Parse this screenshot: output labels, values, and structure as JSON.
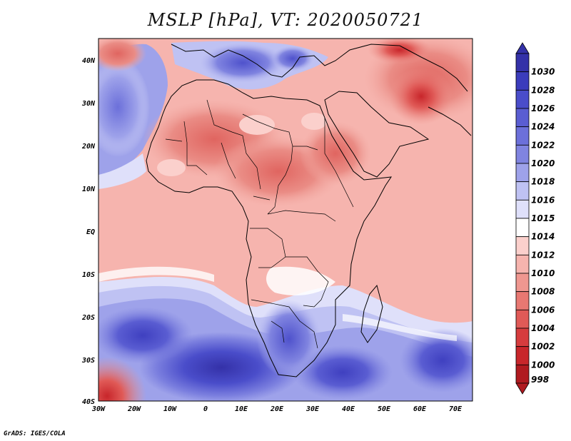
{
  "map": {
    "title": "MSLP [hPa], VT: 2020050721",
    "footer": "GrADS: IGES/COLA",
    "lon_labels": [
      "30W",
      "20W",
      "10W",
      "0",
      "10E",
      "20E",
      "30E",
      "40E",
      "50E",
      "60E",
      "70E"
    ],
    "lat_labels": [
      "40N",
      "30N",
      "20N",
      "10N",
      "EQ",
      "10S",
      "20S",
      "30S",
      "40S"
    ]
  },
  "legend": {
    "levels": [
      "1030",
      "1028",
      "1026",
      "1024",
      "1022",
      "1020",
      "1018",
      "1016",
      "1015",
      "1014",
      "1012",
      "1010",
      "1008",
      "1006",
      "1004",
      "1002",
      "1000",
      "998"
    ],
    "colors": [
      "#3431a8",
      "#3b3cbc",
      "#4a4dca",
      "#5a5dd2",
      "#6c70da",
      "#8084e0",
      "#9ea2ea",
      "#bfc2f3",
      "#dfe0fa",
      "#ffffff",
      "#fbd0cc",
      "#f6b4ae",
      "#ef9790",
      "#e87872",
      "#e05a57",
      "#d63c3e",
      "#c8262b",
      "#b01a20"
    ]
  }
}
